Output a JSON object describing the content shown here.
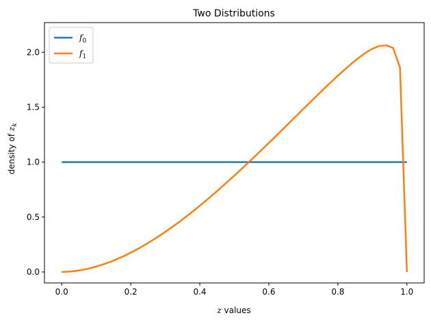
{
  "chart_data": {
    "type": "line",
    "title": "Two Distributions",
    "xlabel": {
      "italic": "z",
      "rest": " values"
    },
    "ylabel": {
      "text": "density of ",
      "var": "z",
      "sub": "k"
    },
    "xlim": [
      -0.05,
      1.05
    ],
    "ylim": [
      -0.1,
      2.27
    ],
    "xticks": [
      0.0,
      0.2,
      0.4,
      0.6,
      0.8,
      1.0
    ],
    "xtick_labels": [
      "0.0",
      "0.2",
      "0.4",
      "0.6",
      "0.8",
      "1.0"
    ],
    "yticks": [
      0.0,
      0.5,
      1.0,
      1.5,
      2.0
    ],
    "ytick_labels": [
      "0.0",
      "0.5",
      "1.0",
      "1.5",
      "2.0"
    ],
    "grid": false,
    "legend_position": "top-left",
    "series": [
      {
        "name": "f0",
        "label_base": "f",
        "label_sub": "0",
        "color": "#1f77b4",
        "x": [
          0.0,
          1.0
        ],
        "y": [
          1.0,
          1.0
        ]
      },
      {
        "name": "f1",
        "label_base": "f",
        "label_sub": "1",
        "color": "#ff7f0e",
        "x": [
          0.0,
          0.02,
          0.04,
          0.06,
          0.08,
          0.1,
          0.12,
          0.14,
          0.16,
          0.18,
          0.2,
          0.22,
          0.24,
          0.26,
          0.28,
          0.3,
          0.32,
          0.34,
          0.36,
          0.38,
          0.4,
          0.42,
          0.44,
          0.46,
          0.48,
          0.5,
          0.52,
          0.54,
          0.56,
          0.58,
          0.6,
          0.62,
          0.64,
          0.66,
          0.68,
          0.7,
          0.72,
          0.74,
          0.76,
          0.78,
          0.8,
          0.82,
          0.84,
          0.86,
          0.88,
          0.9,
          0.92,
          0.94,
          0.96,
          0.98,
          1.0
        ],
        "y": [
          0.0,
          0.003,
          0.009,
          0.019,
          0.032,
          0.049,
          0.069,
          0.091,
          0.117,
          0.145,
          0.176,
          0.209,
          0.245,
          0.283,
          0.323,
          0.365,
          0.409,
          0.455,
          0.503,
          0.552,
          0.603,
          0.655,
          0.709,
          0.764,
          0.82,
          0.877,
          0.935,
          0.994,
          1.054,
          1.114,
          1.175,
          1.236,
          1.298,
          1.36,
          1.422,
          1.484,
          1.546,
          1.607,
          1.668,
          1.728,
          1.786,
          1.843,
          1.898,
          1.949,
          1.995,
          2.032,
          2.057,
          2.063,
          2.04,
          1.86,
          0.0
        ]
      }
    ]
  }
}
